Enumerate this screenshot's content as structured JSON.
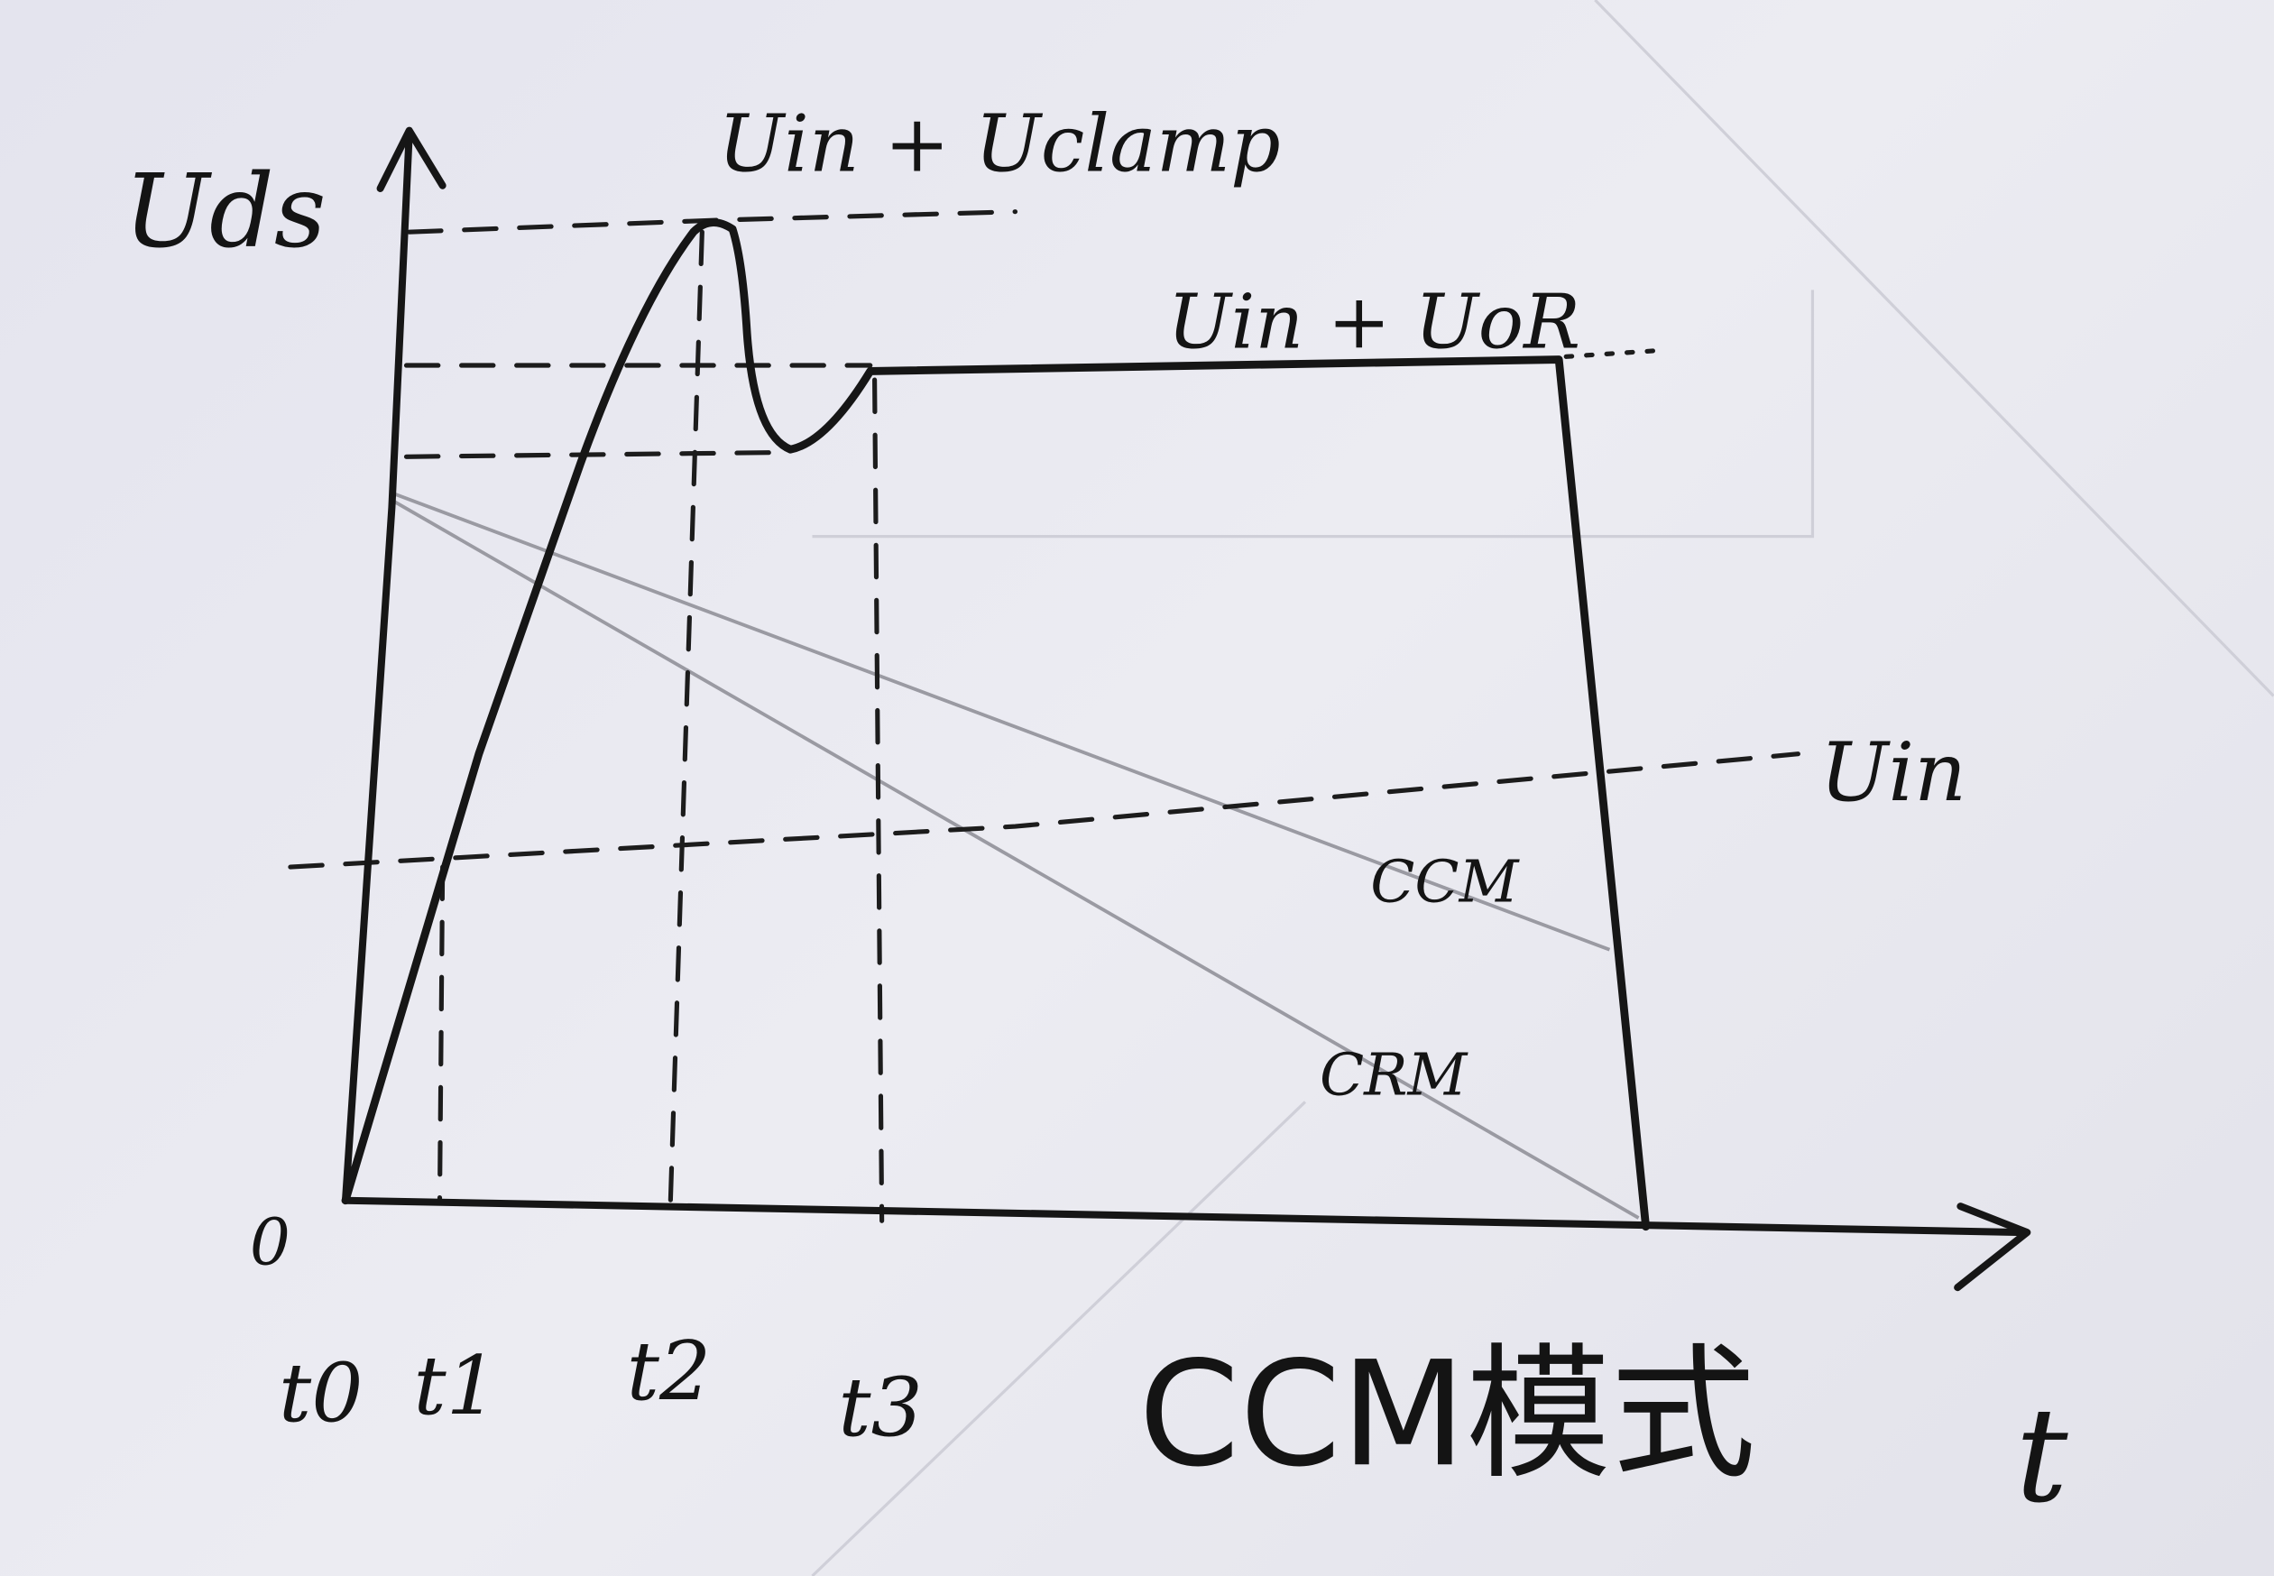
{
  "diagram": {
    "y_axis_label": "Uds",
    "x_axis_label": "t",
    "origin_label": "0",
    "levels": {
      "clamp": "Uin + Uclamp",
      "reflected": "Uin + UoR",
      "input": "Uin"
    },
    "slope_lines": [
      "CCM",
      "CRM"
    ],
    "time_marks": [
      "t0",
      "t1",
      "t2",
      "t3"
    ],
    "caption": "CCM模式",
    "colors": {
      "ink": "#161616",
      "pencil": "#9a9aa2",
      "paper": "#e6e6ee"
    }
  }
}
